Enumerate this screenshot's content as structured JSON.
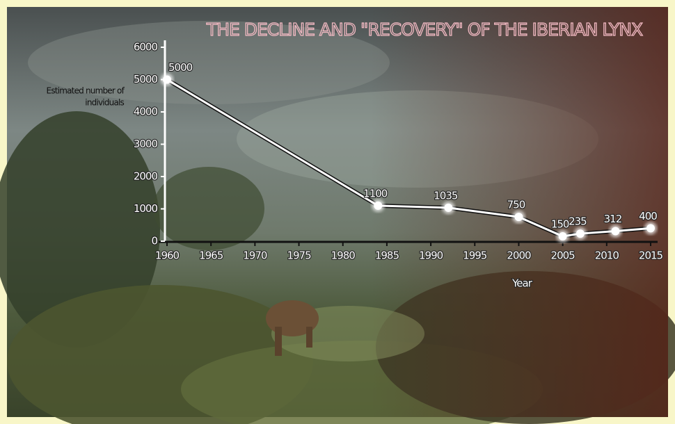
{
  "chart_data": {
    "type": "line",
    "title": "THE DECLINE AND \"RECOVERY\" OF THE IBERIAN LYNX",
    "ylabel": [
      "Estimated number of",
      "individuals"
    ],
    "xlabel": "Year",
    "x": [
      1960,
      1984,
      1992,
      2000,
      2005,
      2007,
      2011,
      2015
    ],
    "values": [
      5000,
      1100,
      1035,
      750,
      150,
      235,
      312,
      400
    ],
    "color": "#ffffff",
    "xlim": [
      1960,
      2015
    ],
    "xticks": [
      1960,
      1965,
      1970,
      1975,
      1980,
      1985,
      1990,
      1995,
      2000,
      2005,
      2010,
      2015
    ],
    "ylim": [
      0,
      6000
    ],
    "yticks": [
      0,
      1000,
      2000,
      3000,
      4000,
      5000,
      6000
    ],
    "grid": false
  }
}
